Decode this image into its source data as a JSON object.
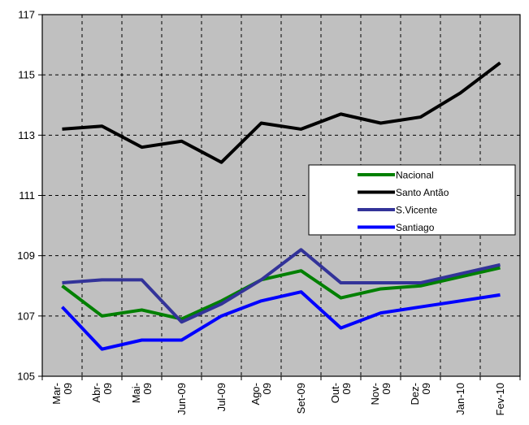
{
  "chart_data": {
    "type": "line",
    "categories": [
      "Mar-\n09",
      "Abr-\n09",
      "Mai-\n09",
      "Jun-09",
      "Jul-09",
      "Ago-\n09",
      "Set-09",
      "Out-\n09",
      "Nov-\n09",
      "Dez-\n09",
      "Jan-10",
      "Fev-10"
    ],
    "yticks": [
      "105",
      "107",
      "109",
      "111",
      "113",
      "115",
      "117"
    ],
    "ylim": [
      105,
      117
    ],
    "grid": true,
    "legend_position": "center-right",
    "background": "#c0c0c0",
    "series": [
      {
        "name": "Nacional",
        "color": "#008000",
        "values": [
          108.0,
          107.0,
          107.2,
          106.9,
          107.5,
          108.2,
          108.5,
          107.6,
          107.9,
          108.0,
          108.3,
          108.6
        ]
      },
      {
        "name": "Santo Antão",
        "color": "#000000",
        "values": [
          113.2,
          113.3,
          112.6,
          112.8,
          112.1,
          113.4,
          113.2,
          113.7,
          113.4,
          113.6,
          114.4,
          115.4
        ]
      },
      {
        "name": "S.Vicente",
        "color": "#333399",
        "values": [
          108.1,
          108.2,
          108.2,
          106.8,
          107.4,
          108.2,
          109.2,
          108.1,
          108.1,
          108.1,
          108.4,
          108.7
        ]
      },
      {
        "name": "Santiago",
        "color": "#0000ff",
        "values": [
          107.3,
          105.9,
          106.2,
          106.2,
          107.0,
          107.5,
          107.8,
          106.6,
          107.1,
          107.3,
          107.5,
          107.7
        ]
      }
    ]
  }
}
